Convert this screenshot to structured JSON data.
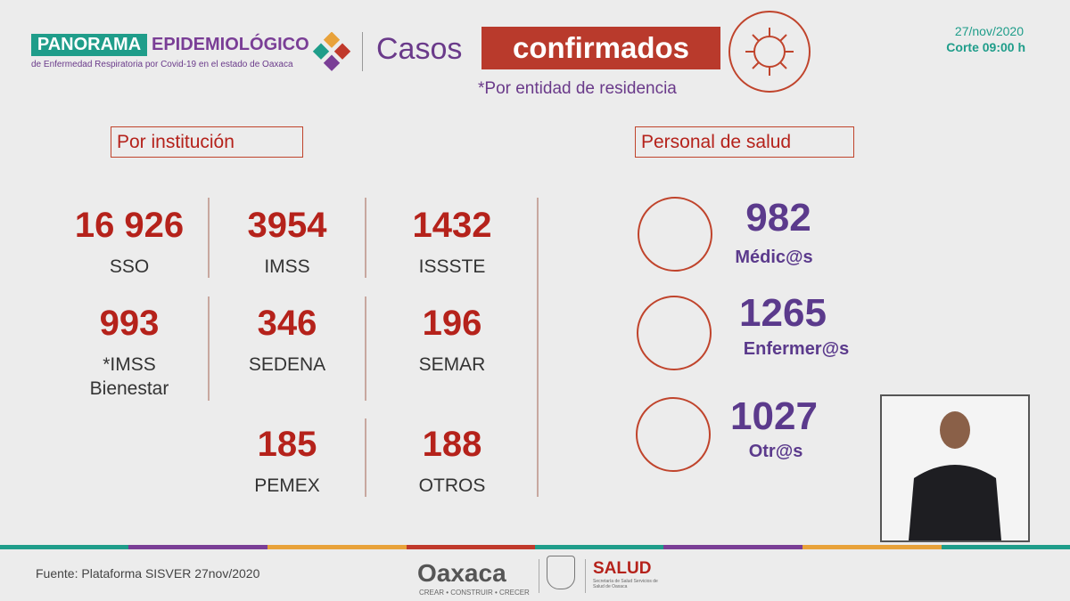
{
  "header": {
    "brand_left": "PANORAMA",
    "brand_right": "EPIDEMIOLÓGICO",
    "brand_subtitle": "de Enfermedad Respiratoria por Covid-19 en el estado de Oaxaca",
    "title_plain": "Casos",
    "title_highlight": "confirmados",
    "note": "*Por entidad de residencia",
    "date": "27/nov/2020",
    "cutoff": "Corte 09:00 h"
  },
  "institutions": {
    "title": "Por institución",
    "items": [
      {
        "value": "16 926",
        "label": "SSO"
      },
      {
        "value": "3954",
        "label": "IMSS"
      },
      {
        "value": "1432",
        "label": "ISSSTE"
      },
      {
        "value": "993",
        "label": "*IMSS Bienestar"
      },
      {
        "value": "346",
        "label": "SEDENA"
      },
      {
        "value": "196",
        "label": "SEMAR"
      },
      {
        "value": "185",
        "label": "PEMEX"
      },
      {
        "value": "188",
        "label": "OTROS"
      }
    ]
  },
  "health_staff": {
    "title": "Personal de salud",
    "items": [
      {
        "value": "982",
        "label": "Médic@s"
      },
      {
        "value": "1265",
        "label": "Enfermer@s"
      },
      {
        "value": "1027",
        "label": "Otr@s"
      }
    ]
  },
  "footer": {
    "source": "Fuente: Plataforma SISVER 27nov/2020",
    "logo_state": "Oaxaca",
    "logo_state_motto": "CREAR • CONSTRUIR • CRECER",
    "logo_health": "SALUD",
    "logo_health_sub": "Secretaría de Salud Servicios de Salud de Oaxaca"
  }
}
